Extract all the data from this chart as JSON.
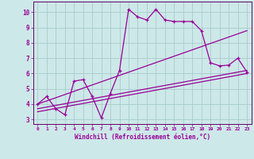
{
  "bg_color": "#cde8e8",
  "grid_color": "#a8cccc",
  "line_color": "#990099",
  "spine_color": "#660066",
  "xlabel": "Windchill (Refroidissement éolien,°C)",
  "xlim": [
    -0.5,
    23.5
  ],
  "ylim": [
    2.7,
    10.7
  ],
  "xticks": [
    0,
    1,
    2,
    3,
    4,
    5,
    6,
    7,
    8,
    9,
    10,
    11,
    12,
    13,
    14,
    15,
    16,
    17,
    18,
    19,
    20,
    21,
    22,
    23
  ],
  "yticks": [
    3,
    4,
    5,
    6,
    7,
    8,
    9,
    10
  ],
  "series1_x": [
    0,
    1,
    2,
    3,
    4,
    5,
    6,
    7,
    8,
    9,
    10,
    11,
    12,
    13,
    14,
    15,
    16,
    17,
    18,
    19,
    20,
    21,
    22,
    23
  ],
  "series1_y": [
    4.0,
    4.5,
    3.7,
    3.3,
    5.5,
    5.6,
    4.5,
    3.1,
    4.7,
    6.2,
    10.2,
    9.7,
    9.5,
    10.2,
    9.5,
    9.4,
    9.4,
    9.4,
    8.8,
    6.7,
    6.5,
    6.55,
    7.0,
    6.1
  ],
  "line1_x": [
    0,
    23
  ],
  "line1_y": [
    4.0,
    8.8
  ],
  "line2_x": [
    0,
    23
  ],
  "line2_y": [
    3.7,
    6.2
  ],
  "line3_x": [
    0,
    23
  ],
  "line3_y": [
    3.5,
    6.0
  ]
}
